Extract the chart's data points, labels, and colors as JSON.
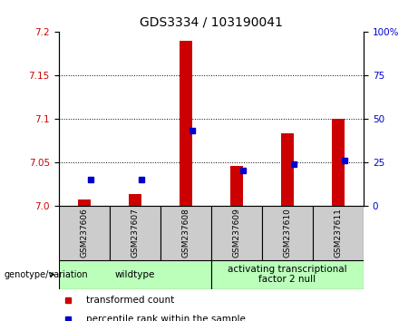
{
  "title": "GDS3334 / 103190041",
  "samples": [
    "GSM237606",
    "GSM237607",
    "GSM237608",
    "GSM237609",
    "GSM237610",
    "GSM237611"
  ],
  "red_values": [
    7.007,
    7.013,
    7.19,
    7.046,
    7.083,
    7.1
  ],
  "blue_percentiles": [
    15,
    15,
    43,
    20,
    24,
    26
  ],
  "y_min": 7.0,
  "y_max": 7.2,
  "y_ticks": [
    7.0,
    7.05,
    7.1,
    7.15,
    7.2
  ],
  "y_ticks_right": [
    0,
    25,
    50,
    75,
    100
  ],
  "bar_width": 0.25,
  "red_color": "#cc0000",
  "blue_color": "#0000cc",
  "wildtype_label": "wildtype",
  "atf2_label": "activating transcriptional\nfactor 2 null",
  "wildtype_color": "#bbffbb",
  "atf2_color": "#bbffbb",
  "sample_bg_color": "#cccccc",
  "legend_red": "transformed count",
  "legend_blue": "percentile rank within the sample",
  "title_fontsize": 10,
  "tick_fontsize": 7.5,
  "label_fontsize": 6.5,
  "geno_fontsize": 7.5
}
